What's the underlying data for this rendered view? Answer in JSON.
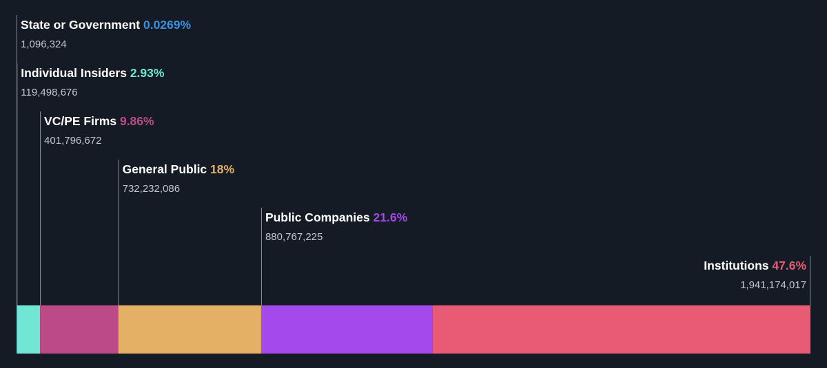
{
  "chart_data": {
    "type": "bar",
    "orientation": "horizontal-stacked-100",
    "title": "",
    "categories": [
      "State or Government",
      "Individual Insiders",
      "VC/PE Firms",
      "General Public",
      "Public Companies",
      "Institutions"
    ],
    "series": [
      {
        "values": [
          0.0269,
          2.93,
          9.86,
          18,
          21.6,
          47.6
        ],
        "percent_labels": [
          "0.0269%",
          "2.93%",
          "9.86%",
          "18%",
          "21.6%",
          "47.6%"
        ],
        "count_labels": [
          "1,096,324",
          "119,498,676",
          "401,796,672",
          "732,232,086",
          "880,767,225",
          "1,941,174,017"
        ]
      }
    ],
    "colors": [
      "#3a8fe0",
      "#72e6d4",
      "#bc4a88",
      "#e4b065",
      "#a449eb",
      "#e95b75"
    ],
    "grid": false,
    "legend": "none"
  }
}
